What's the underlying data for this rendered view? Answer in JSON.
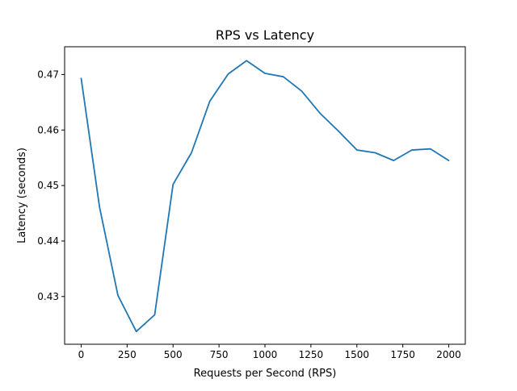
{
  "chart_data": {
    "type": "line",
    "title": "RPS vs Latency",
    "xlabel": "Requests per Second (RPS)",
    "ylabel": "Latency (seconds)",
    "xlim": [
      -90,
      2090
    ],
    "ylim": [
      0.4214,
      0.475
    ],
    "xticks": [
      0,
      250,
      500,
      750,
      1000,
      1250,
      1500,
      1750,
      2000
    ],
    "xtick_labels": [
      "0",
      "250",
      "500",
      "750",
      "1000",
      "1250",
      "1500",
      "1750",
      "2000"
    ],
    "yticks": [
      0.43,
      0.44,
      0.45,
      0.46,
      0.47
    ],
    "ytick_labels": [
      "0.43",
      "0.44",
      "0.45",
      "0.46",
      "0.47"
    ],
    "grid": false,
    "series": [
      {
        "color": "#1f77b4",
        "x": [
          0,
          100,
          200,
          300,
          400,
          500,
          600,
          700,
          800,
          900,
          1000,
          1100,
          1200,
          1300,
          1400,
          1500,
          1600,
          1700,
          1800,
          1900,
          2000
        ],
        "y": [
          0.4693,
          0.4461,
          0.4302,
          0.4237,
          0.4267,
          0.4502,
          0.4559,
          0.4652,
          0.4701,
          0.4725,
          0.4702,
          0.4696,
          0.467,
          0.463,
          0.4598,
          0.4564,
          0.4559,
          0.4545,
          0.4564,
          0.4566,
          0.4545
        ]
      }
    ]
  }
}
